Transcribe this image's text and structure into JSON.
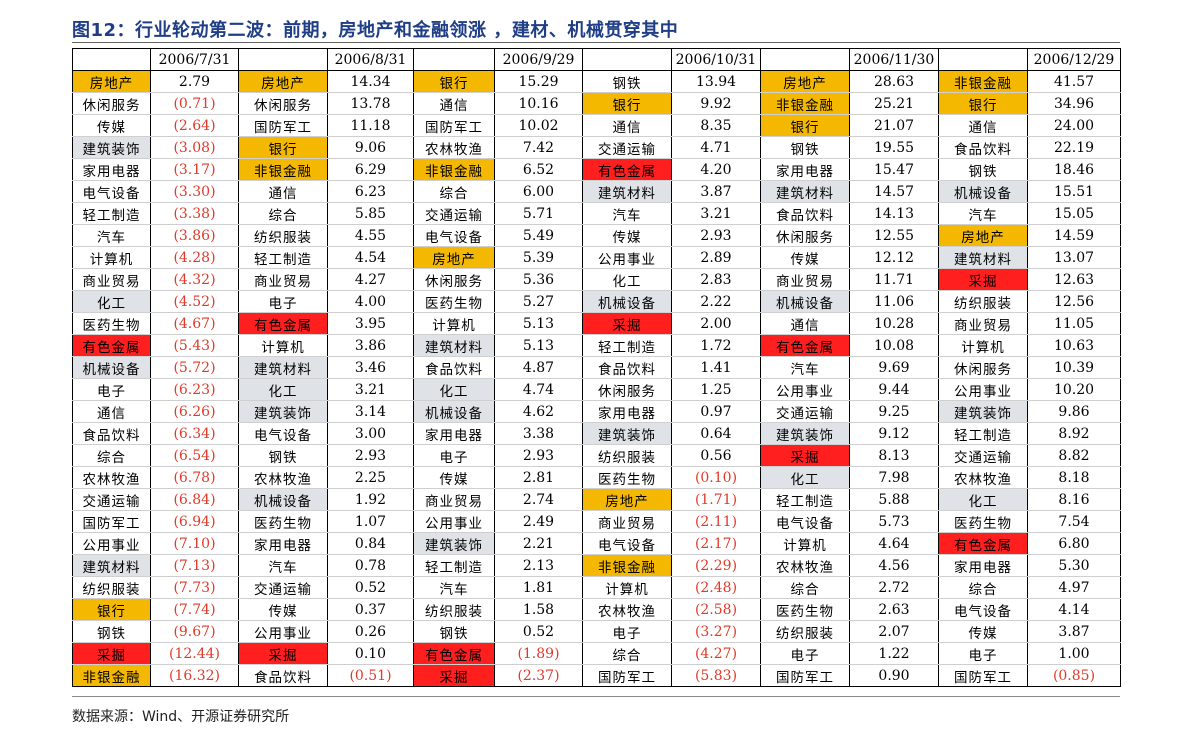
{
  "title": "图12：行业轮动第二波：前期，房地产和金融领涨 ，建材、机械贯穿其中",
  "source": "数据来源：Wind、开源证券研究所",
  "colors": {
    "title": "#1f3e86",
    "highlight_orange": "#f5b800",
    "highlight_red": "#ff1f1f",
    "highlight_gray": "#dfe3e8",
    "negative_text": "#e03a2a"
  },
  "dates": [
    "2006/7/31",
    "2006/8/31",
    "2006/9/29",
    "2006/10/31",
    "2006/11/30",
    "2006/12/29"
  ],
  "rows": [
    [
      [
        "房地产",
        "2.79",
        "o"
      ],
      [
        "房地产",
        "14.34",
        "o"
      ],
      [
        "银行",
        "15.29",
        "o"
      ],
      [
        "钢铁",
        "13.94",
        ""
      ],
      [
        "房地产",
        "28.63",
        "o"
      ],
      [
        "非银金融",
        "41.57",
        "o"
      ]
    ],
    [
      [
        "休闲服务",
        "(0.71)",
        ""
      ],
      [
        "休闲服务",
        "13.78",
        ""
      ],
      [
        "通信",
        "10.16",
        ""
      ],
      [
        "银行",
        "9.92",
        "o"
      ],
      [
        "非银金融",
        "25.21",
        "o"
      ],
      [
        "银行",
        "34.96",
        "o"
      ]
    ],
    [
      [
        "传媒",
        "(2.64)",
        ""
      ],
      [
        "国防军工",
        "11.18",
        ""
      ],
      [
        "国防军工",
        "10.02",
        ""
      ],
      [
        "通信",
        "8.35",
        ""
      ],
      [
        "银行",
        "21.07",
        "o"
      ],
      [
        "通信",
        "24.00",
        ""
      ]
    ],
    [
      [
        "建筑装饰",
        "(3.08)",
        "g"
      ],
      [
        "银行",
        "9.06",
        "o"
      ],
      [
        "农林牧渔",
        "7.42",
        ""
      ],
      [
        "交通运输",
        "4.71",
        ""
      ],
      [
        "钢铁",
        "19.55",
        ""
      ],
      [
        "食品饮料",
        "22.19",
        ""
      ]
    ],
    [
      [
        "家用电器",
        "(3.17)",
        ""
      ],
      [
        "非银金融",
        "6.29",
        "o"
      ],
      [
        "非银金融",
        "6.52",
        "o"
      ],
      [
        "有色金属",
        "4.20",
        "r"
      ],
      [
        "家用电器",
        "15.47",
        ""
      ],
      [
        "钢铁",
        "18.46",
        ""
      ]
    ],
    [
      [
        "电气设备",
        "(3.30)",
        ""
      ],
      [
        "通信",
        "6.23",
        ""
      ],
      [
        "综合",
        "6.00",
        ""
      ],
      [
        "建筑材料",
        "3.87",
        "g"
      ],
      [
        "建筑材料",
        "14.57",
        "g"
      ],
      [
        "机械设备",
        "15.51",
        "g"
      ]
    ],
    [
      [
        "轻工制造",
        "(3.38)",
        ""
      ],
      [
        "综合",
        "5.85",
        ""
      ],
      [
        "交通运输",
        "5.71",
        ""
      ],
      [
        "汽车",
        "3.21",
        ""
      ],
      [
        "食品饮料",
        "14.13",
        ""
      ],
      [
        "汽车",
        "15.05",
        ""
      ]
    ],
    [
      [
        "汽车",
        "(3.86)",
        ""
      ],
      [
        "纺织服装",
        "4.55",
        ""
      ],
      [
        "电气设备",
        "5.49",
        ""
      ],
      [
        "传媒",
        "2.93",
        ""
      ],
      [
        "休闲服务",
        "12.55",
        ""
      ],
      [
        "房地产",
        "14.59",
        "o"
      ]
    ],
    [
      [
        "计算机",
        "(4.28)",
        ""
      ],
      [
        "轻工制造",
        "4.54",
        ""
      ],
      [
        "房地产",
        "5.39",
        "o"
      ],
      [
        "公用事业",
        "2.89",
        ""
      ],
      [
        "传媒",
        "12.12",
        ""
      ],
      [
        "建筑材料",
        "13.07",
        "g"
      ]
    ],
    [
      [
        "商业贸易",
        "(4.32)",
        ""
      ],
      [
        "商业贸易",
        "4.27",
        ""
      ],
      [
        "休闲服务",
        "5.36",
        ""
      ],
      [
        "化工",
        "2.83",
        ""
      ],
      [
        "商业贸易",
        "11.71",
        ""
      ],
      [
        "采掘",
        "12.63",
        "r"
      ]
    ],
    [
      [
        "化工",
        "(4.52)",
        "g"
      ],
      [
        "电子",
        "4.00",
        ""
      ],
      [
        "医药生物",
        "5.27",
        ""
      ],
      [
        "机械设备",
        "2.22",
        "g"
      ],
      [
        "机械设备",
        "11.06",
        "g"
      ],
      [
        "纺织服装",
        "12.56",
        ""
      ]
    ],
    [
      [
        "医药生物",
        "(4.67)",
        ""
      ],
      [
        "有色金属",
        "3.95",
        "r"
      ],
      [
        "计算机",
        "5.13",
        ""
      ],
      [
        "采掘",
        "2.00",
        "r"
      ],
      [
        "通信",
        "10.28",
        ""
      ],
      [
        "商业贸易",
        "11.05",
        ""
      ]
    ],
    [
      [
        "有色金属",
        "(5.43)",
        "r"
      ],
      [
        "计算机",
        "3.86",
        ""
      ],
      [
        "建筑材料",
        "5.13",
        "g"
      ],
      [
        "轻工制造",
        "1.72",
        ""
      ],
      [
        "有色金属",
        "10.08",
        "r"
      ],
      [
        "计算机",
        "10.63",
        ""
      ]
    ],
    [
      [
        "机械设备",
        "(5.72)",
        "g"
      ],
      [
        "建筑材料",
        "3.46",
        "g"
      ],
      [
        "食品饮料",
        "4.87",
        ""
      ],
      [
        "食品饮料",
        "1.41",
        ""
      ],
      [
        "汽车",
        "9.69",
        ""
      ],
      [
        "休闲服务",
        "10.39",
        ""
      ]
    ],
    [
      [
        "电子",
        "(6.23)",
        ""
      ],
      [
        "化工",
        "3.21",
        "g"
      ],
      [
        "化工",
        "4.74",
        "g"
      ],
      [
        "休闲服务",
        "1.25",
        ""
      ],
      [
        "公用事业",
        "9.44",
        ""
      ],
      [
        "公用事业",
        "10.20",
        ""
      ]
    ],
    [
      [
        "通信",
        "(6.26)",
        ""
      ],
      [
        "建筑装饰",
        "3.14",
        "g"
      ],
      [
        "机械设备",
        "4.62",
        "g"
      ],
      [
        "家用电器",
        "0.97",
        ""
      ],
      [
        "交通运输",
        "9.25",
        ""
      ],
      [
        "建筑装饰",
        "9.86",
        "g"
      ]
    ],
    [
      [
        "食品饮料",
        "(6.34)",
        ""
      ],
      [
        "电气设备",
        "3.00",
        ""
      ],
      [
        "家用电器",
        "3.38",
        ""
      ],
      [
        "建筑装饰",
        "0.64",
        "g"
      ],
      [
        "建筑装饰",
        "9.12",
        "g"
      ],
      [
        "轻工制造",
        "8.92",
        ""
      ]
    ],
    [
      [
        "综合",
        "(6.54)",
        ""
      ],
      [
        "钢铁",
        "2.93",
        ""
      ],
      [
        "电子",
        "2.93",
        ""
      ],
      [
        "纺织服装",
        "0.56",
        ""
      ],
      [
        "采掘",
        "8.13",
        "r"
      ],
      [
        "交通运输",
        "8.82",
        ""
      ]
    ],
    [
      [
        "农林牧渔",
        "(6.78)",
        ""
      ],
      [
        "农林牧渔",
        "2.25",
        ""
      ],
      [
        "传媒",
        "2.81",
        ""
      ],
      [
        "医药生物",
        "(0.10)",
        ""
      ],
      [
        "化工",
        "7.98",
        "g"
      ],
      [
        "农林牧渔",
        "8.18",
        ""
      ]
    ],
    [
      [
        "交通运输",
        "(6.84)",
        ""
      ],
      [
        "机械设备",
        "1.92",
        "g"
      ],
      [
        "商业贸易",
        "2.74",
        ""
      ],
      [
        "房地产",
        "(1.71)",
        "o"
      ],
      [
        "轻工制造",
        "5.88",
        ""
      ],
      [
        "化工",
        "8.16",
        "g"
      ]
    ],
    [
      [
        "国防军工",
        "(6.94)",
        ""
      ],
      [
        "医药生物",
        "1.07",
        ""
      ],
      [
        "公用事业",
        "2.49",
        ""
      ],
      [
        "商业贸易",
        "(2.11)",
        ""
      ],
      [
        "电气设备",
        "5.73",
        ""
      ],
      [
        "医药生物",
        "7.54",
        ""
      ]
    ],
    [
      [
        "公用事业",
        "(7.10)",
        ""
      ],
      [
        "家用电器",
        "0.84",
        ""
      ],
      [
        "建筑装饰",
        "2.21",
        "g"
      ],
      [
        "电气设备",
        "(2.17)",
        ""
      ],
      [
        "计算机",
        "4.64",
        ""
      ],
      [
        "有色金属",
        "6.80",
        "r"
      ]
    ],
    [
      [
        "建筑材料",
        "(7.13)",
        "g"
      ],
      [
        "汽车",
        "0.78",
        ""
      ],
      [
        "轻工制造",
        "2.13",
        ""
      ],
      [
        "非银金融",
        "(2.29)",
        "o"
      ],
      [
        "农林牧渔",
        "4.56",
        ""
      ],
      [
        "家用电器",
        "5.30",
        ""
      ]
    ],
    [
      [
        "纺织服装",
        "(7.73)",
        ""
      ],
      [
        "交通运输",
        "0.52",
        ""
      ],
      [
        "汽车",
        "1.81",
        ""
      ],
      [
        "计算机",
        "(2.48)",
        ""
      ],
      [
        "综合",
        "2.72",
        ""
      ],
      [
        "综合",
        "4.97",
        ""
      ]
    ],
    [
      [
        "银行",
        "(7.74)",
        "o"
      ],
      [
        "传媒",
        "0.37",
        ""
      ],
      [
        "纺织服装",
        "1.58",
        ""
      ],
      [
        "农林牧渔",
        "(2.58)",
        ""
      ],
      [
        "医药生物",
        "2.63",
        ""
      ],
      [
        "电气设备",
        "4.14",
        ""
      ]
    ],
    [
      [
        "钢铁",
        "(9.67)",
        ""
      ],
      [
        "公用事业",
        "0.26",
        ""
      ],
      [
        "钢铁",
        "0.52",
        ""
      ],
      [
        "电子",
        "(3.27)",
        ""
      ],
      [
        "纺织服装",
        "2.07",
        ""
      ],
      [
        "传媒",
        "3.87",
        ""
      ]
    ],
    [
      [
        "采掘",
        "(12.44)",
        "r"
      ],
      [
        "采掘",
        "0.10",
        "r"
      ],
      [
        "有色金属",
        "(1.89)",
        "r"
      ],
      [
        "综合",
        "(4.27)",
        ""
      ],
      [
        "电子",
        "1.22",
        ""
      ],
      [
        "电子",
        "1.00",
        ""
      ]
    ],
    [
      [
        "非银金融",
        "(16.32)",
        "o"
      ],
      [
        "食品饮料",
        "(0.51)",
        ""
      ],
      [
        "采掘",
        "(2.37)",
        "r"
      ],
      [
        "国防军工",
        "(5.83)",
        ""
      ],
      [
        "国防军工",
        "0.90",
        ""
      ],
      [
        "国防军工",
        "(0.85)",
        ""
      ]
    ]
  ]
}
